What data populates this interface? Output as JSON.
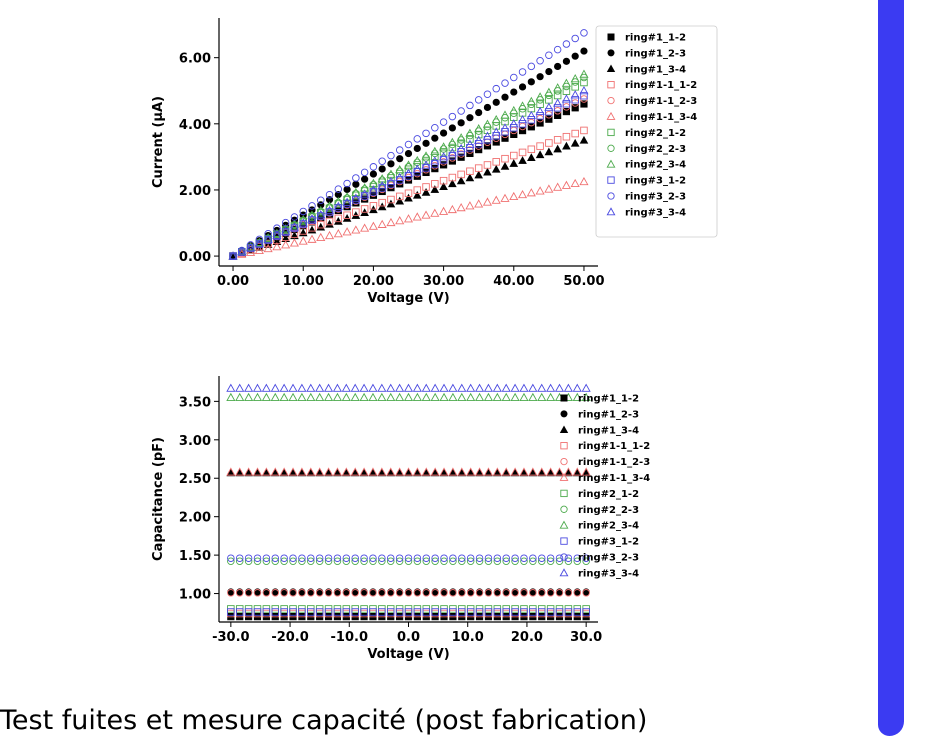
{
  "caption": "Test fuites et mesure capacité (post fabrication)",
  "colors": {
    "accent_panel": "#3b3bf2"
  },
  "chart_data": [
    {
      "type": "scatter",
      "xlabel": "Voltage (V)",
      "ylabel": "Current (µA)",
      "xlim": [
        -2,
        52
      ],
      "ylim": [
        -0.3,
        7.2
      ],
      "xticks": [
        0,
        10,
        20,
        30,
        40,
        50
      ],
      "xtick_labels": [
        "0.00",
        "10.00",
        "20.00",
        "30.00",
        "40.00",
        "50.00"
      ],
      "yticks": [
        0,
        2,
        4,
        6
      ],
      "ytick_labels": [
        "0.00",
        "2.00",
        "4.00",
        "6.00"
      ],
      "x_range": [
        0,
        50
      ],
      "x_step": 1.25,
      "legend_position": "right",
      "grid": false,
      "series": [
        {
          "name": "ring#1_1-2",
          "color": "#000000",
          "marker": "square",
          "filled": true,
          "slope": 0.092
        },
        {
          "name": "ring#1_2-3",
          "color": "#000000",
          "marker": "circle",
          "filled": true,
          "slope": 0.124
        },
        {
          "name": "ring#1_3-4",
          "color": "#000000",
          "marker": "triangle",
          "filled": true,
          "slope": 0.07
        },
        {
          "name": "ring#1-1_1-2",
          "color": "#f07070",
          "marker": "square",
          "filled": false,
          "slope": 0.076
        },
        {
          "name": "ring#1-1_2-3",
          "color": "#f07070",
          "marker": "circle",
          "filled": false,
          "slope": 0.095
        },
        {
          "name": "ring#1-1_3-4",
          "color": "#f07070",
          "marker": "triangle",
          "filled": false,
          "slope": 0.045
        },
        {
          "name": "ring#2_1-2",
          "color": "#4caa4c",
          "marker": "square",
          "filled": false,
          "slope": 0.105
        },
        {
          "name": "ring#2_2-3",
          "color": "#4caa4c",
          "marker": "circle",
          "filled": false,
          "slope": 0.108
        },
        {
          "name": "ring#2_3-4",
          "color": "#4caa4c",
          "marker": "triangle",
          "filled": false,
          "slope": 0.11
        },
        {
          "name": "ring#3_1-2",
          "color": "#4a4ae0",
          "marker": "square",
          "filled": false,
          "slope": 0.097
        },
        {
          "name": "ring#3_2-3",
          "color": "#4a4ae0",
          "marker": "circle",
          "filled": false,
          "slope": 0.135
        },
        {
          "name": "ring#3_3-4",
          "color": "#4a4ae0",
          "marker": "triangle",
          "filled": false,
          "slope": 0.1
        }
      ]
    },
    {
      "type": "scatter",
      "xlabel": "Voltage (V)",
      "ylabel": "Capacitance (pF)",
      "xlim": [
        -32,
        32
      ],
      "ylim": [
        0.63,
        3.83
      ],
      "xticks": [
        -30,
        -20,
        -10,
        0,
        10,
        20,
        30
      ],
      "xtick_labels": [
        "-30.0",
        "-20.0",
        "-10.0",
        "0.0",
        "10.0",
        "20.0",
        "30.0"
      ],
      "yticks": [
        1.0,
        1.5,
        2.0,
        2.5,
        3.0,
        3.5
      ],
      "ytick_labels": [
        "1.00",
        "1.50",
        "2.00",
        "2.50",
        "3.00",
        "3.50"
      ],
      "x_range": [
        -30,
        30
      ],
      "x_step": 1.5,
      "legend_position": "right",
      "grid": false,
      "series": [
        {
          "name": "ring#1_1-2",
          "color": "#000000",
          "marker": "square",
          "filled": true,
          "value": 0.7
        },
        {
          "name": "ring#1_2-3",
          "color": "#000000",
          "marker": "circle",
          "filled": true,
          "value": 1.02
        },
        {
          "name": "ring#1_3-4",
          "color": "#000000",
          "marker": "triangle",
          "filled": true,
          "value": 2.57
        },
        {
          "name": "ring#1-1_1-2",
          "color": "#f07070",
          "marker": "square",
          "filled": false,
          "value": 0.74
        },
        {
          "name": "ring#1-1_2-3",
          "color": "#f07070",
          "marker": "circle",
          "filled": false,
          "value": 1.01
        },
        {
          "name": "ring#1-1_3-4",
          "color": "#f07070",
          "marker": "triangle",
          "filled": false,
          "value": 2.58
        },
        {
          "name": "ring#2_1-2",
          "color": "#4caa4c",
          "marker": "square",
          "filled": false,
          "value": 0.8
        },
        {
          "name": "ring#2_2-3",
          "color": "#4caa4c",
          "marker": "circle",
          "filled": false,
          "value": 1.42
        },
        {
          "name": "ring#2_3-4",
          "color": "#4caa4c",
          "marker": "triangle",
          "filled": false,
          "value": 3.55
        },
        {
          "name": "ring#3_1-2",
          "color": "#4a4ae0",
          "marker": "square",
          "filled": false,
          "value": 0.76
        },
        {
          "name": "ring#3_2-3",
          "color": "#4a4ae0",
          "marker": "circle",
          "filled": false,
          "value": 1.46
        },
        {
          "name": "ring#3_3-4",
          "color": "#4a4ae0",
          "marker": "triangle",
          "filled": false,
          "value": 3.67
        }
      ]
    }
  ]
}
